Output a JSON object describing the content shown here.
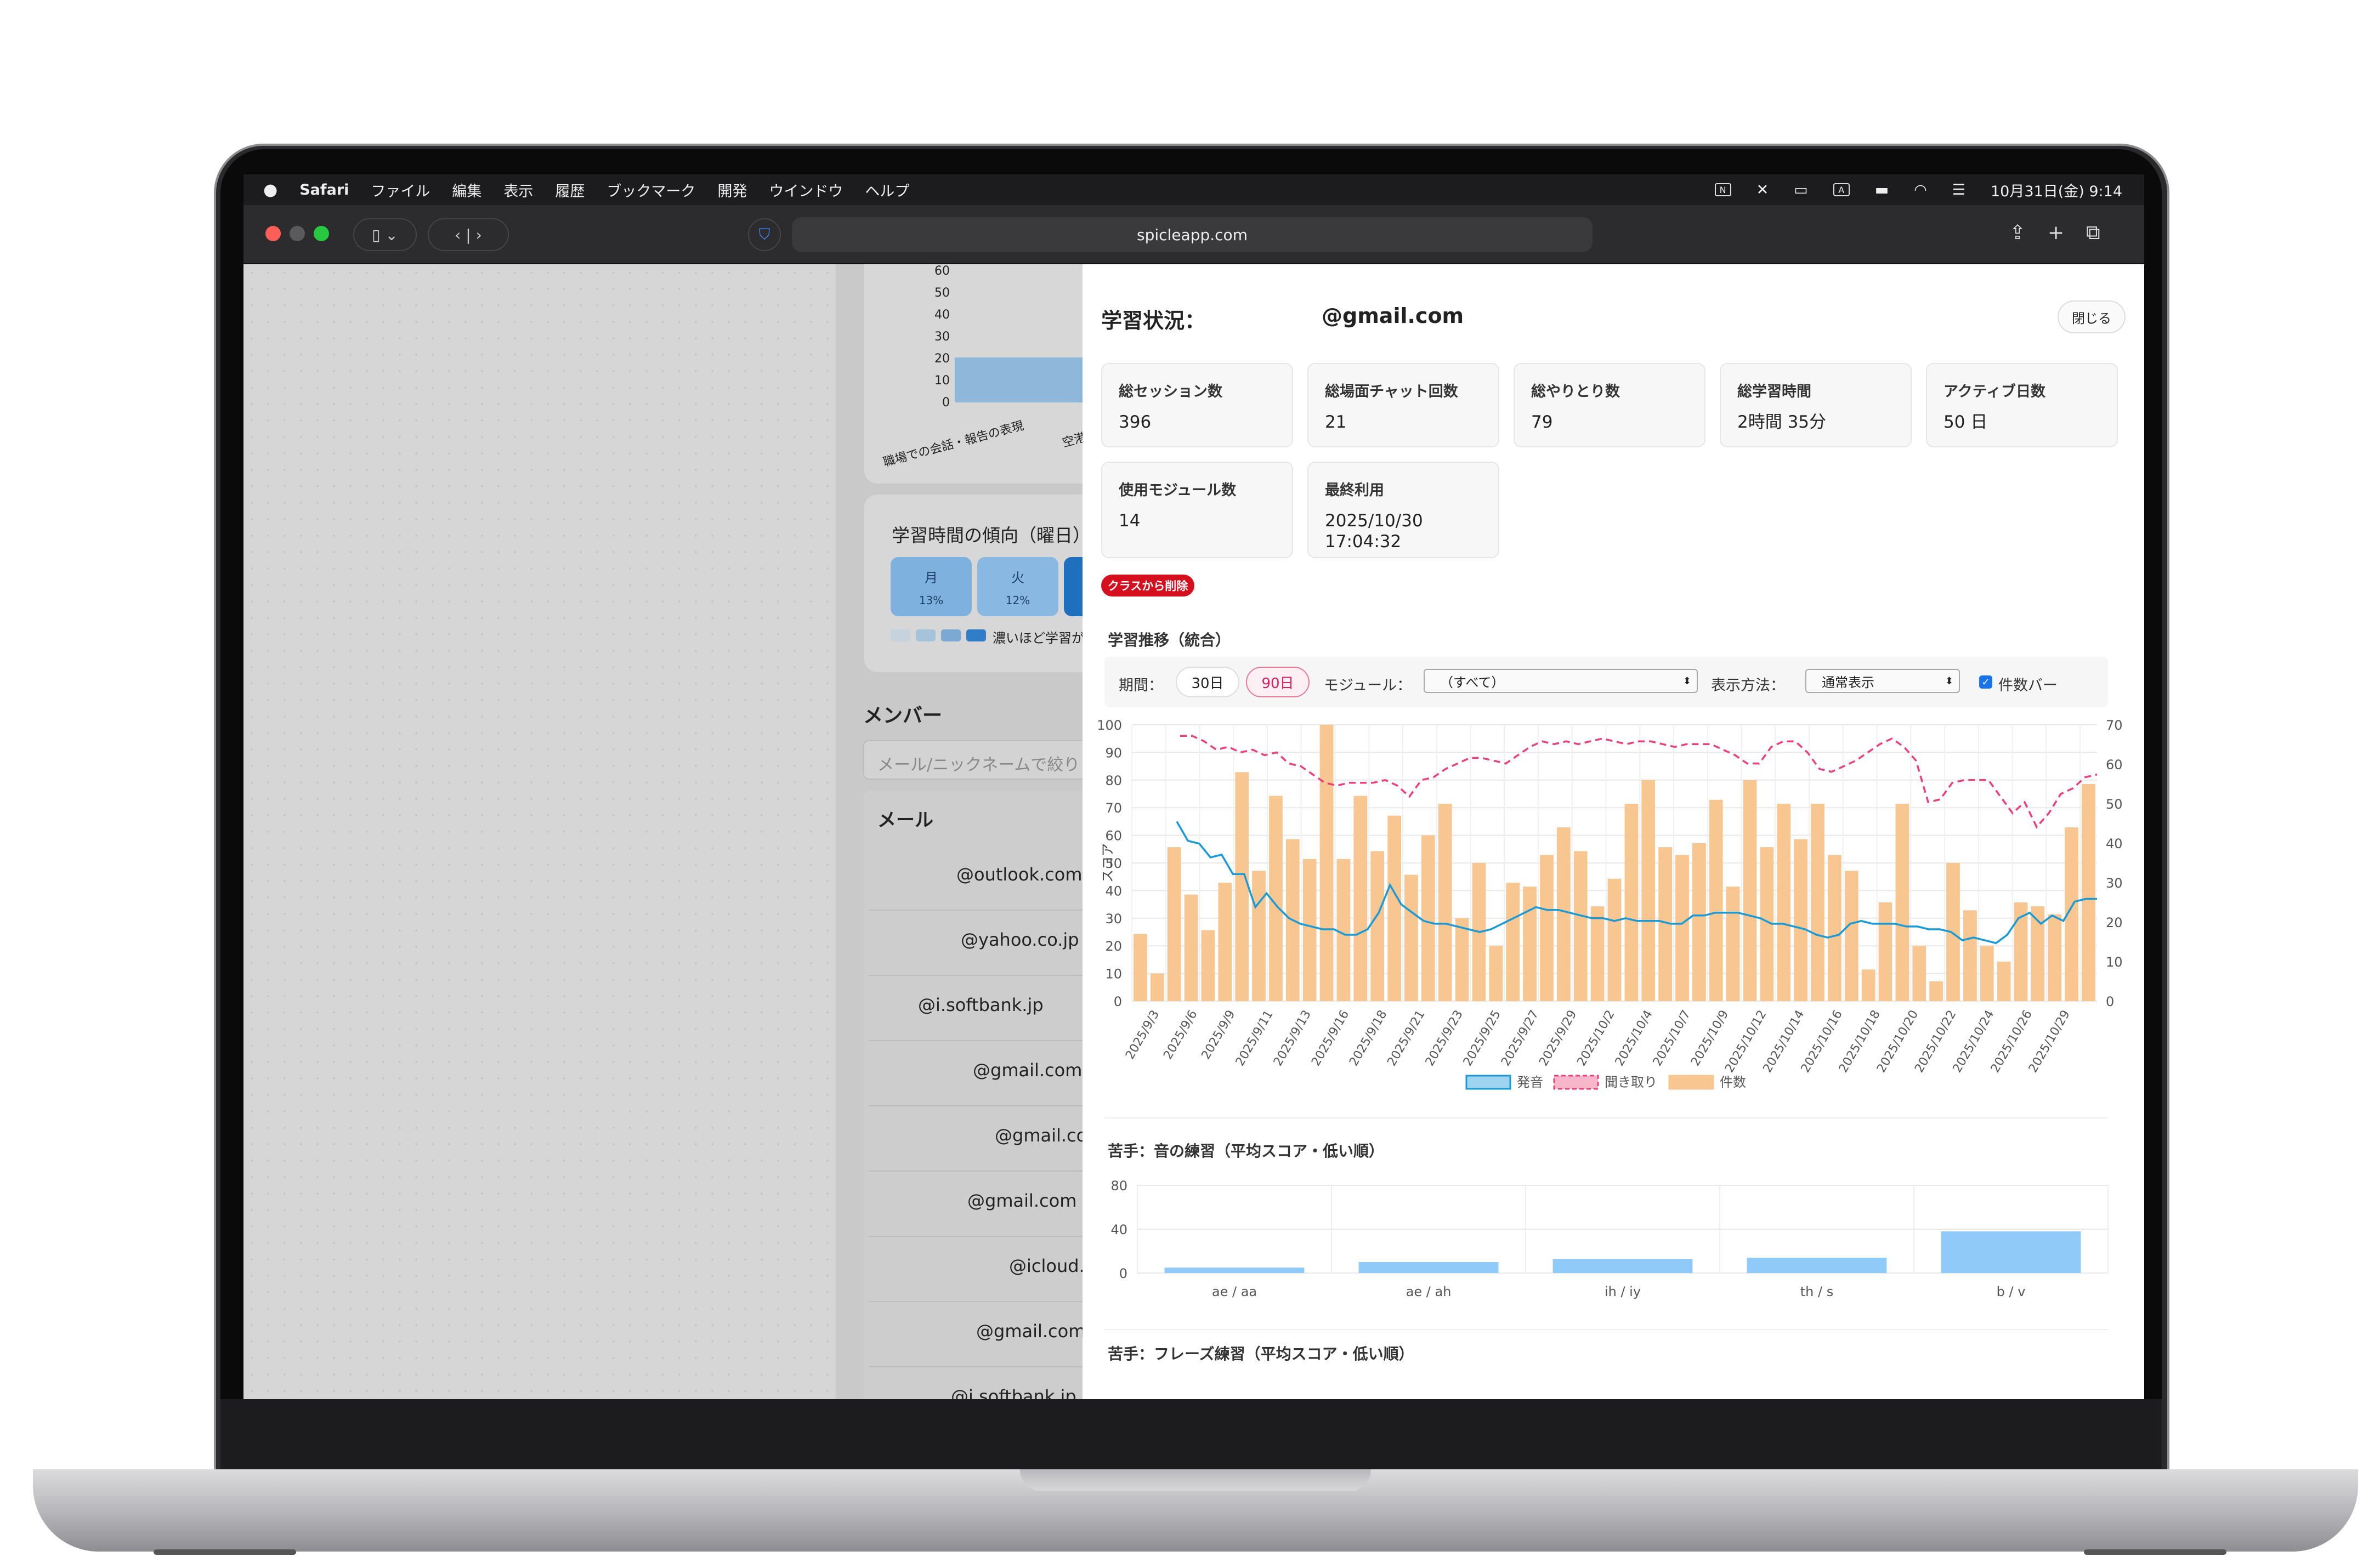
{
  "menubar": {
    "app": "Safari",
    "items": [
      "ファイル",
      "編集",
      "表示",
      "履歴",
      "ブックマーク",
      "開発",
      "ウインドウ",
      "ヘルプ"
    ],
    "clock": "10月31日(金) 9:14"
  },
  "toolbar": {
    "url": "spicleapp.com"
  },
  "midpane": {
    "chart_yticks": [
      "60",
      "50",
      "40",
      "30",
      "20",
      "10",
      "0"
    ],
    "chart_xlabels": [
      "職場での会話・報告の表現",
      "空港で"
    ],
    "weekday_title": "学習時間の傾向（曜日）",
    "days": [
      {
        "label": "月",
        "pct": "13%"
      },
      {
        "label": "火",
        "pct": "12%"
      }
    ],
    "legend_text": "濃いほど学習が",
    "members_title": "メンバー",
    "search_placeholder": "メール/ニックネームで絞り",
    "email_header": "メール",
    "emails": [
      "@outlook.com",
      "@yahoo.co.jp",
      "@i.softbank.jp",
      "@gmail.com",
      "@gmail.com",
      "@gmail.com",
      "@icloud.c",
      "@gmail.com",
      "@i.softbank.jp"
    ]
  },
  "panel": {
    "title": "学習状況：",
    "email": "@gmail.com",
    "close": "閉じる",
    "stats": [
      {
        "label": "総セッション数",
        "value": "396"
      },
      {
        "label": "総場面チャット回数",
        "value": "21"
      },
      {
        "label": "総やりとり数",
        "value": "79"
      },
      {
        "label": "総学習時間",
        "value": "2時間 35分"
      },
      {
        "label": "アクティブ日数",
        "value": "50 日"
      },
      {
        "label": "使用モジュール数",
        "value": "14"
      },
      {
        "label": "最終利用",
        "value": "2025/10/30 17:04:32"
      }
    ],
    "remove": "クラスから削除",
    "trend_title": "学習推移（統合）",
    "filters": {
      "period_label": "期間：",
      "p30": "30日",
      "p90": "90日",
      "module_label": "モジュール：",
      "module_value": "（すべて）",
      "view_label": "表示方法：",
      "view_value": "通常表示",
      "bar_label": "件数バー"
    },
    "weak_sound_title": "苦手：音の練習（平均スコア・低い順）",
    "weak_phrase_title": "苦手：フレーズ練習（平均スコア・低い順）"
  },
  "colors": {
    "pron": "#1a9ad6",
    "listen": "#ec407a",
    "count": "#f8c690",
    "weak_bar": "#90caf9"
  },
  "chart_data": [
    {
      "type": "bar+line",
      "title": "学習推移（統合）",
      "ylabel": "スコア",
      "ylim": [
        0,
        100
      ],
      "y2lim": [
        0,
        70
      ],
      "yticks": [
        0,
        10,
        20,
        30,
        40,
        50,
        60,
        70,
        80,
        90,
        100
      ],
      "y2ticks": [
        0,
        10,
        20,
        30,
        40,
        50,
        60,
        70
      ],
      "x_labels": [
        "2025/9/3",
        "2025/9/6",
        "2025/9/9",
        "2025/9/11",
        "2025/9/13",
        "2025/9/16",
        "2025/9/18",
        "2025/9/21",
        "2025/9/23",
        "2025/9/25",
        "2025/9/27",
        "2025/9/29",
        "2025/10/2",
        "2025/10/4",
        "2025/10/7",
        "2025/10/9",
        "2025/10/12",
        "2025/10/14",
        "2025/10/16",
        "2025/10/18",
        "2025/10/20",
        "2025/10/22",
        "2025/10/24",
        "2025/10/26",
        "2025/10/29"
      ],
      "legend": [
        "発音",
        "聞き取り",
        "件数"
      ],
      "series": [
        {
          "name": "件数",
          "axis": "y2",
          "values": [
            17,
            7,
            39,
            27,
            18,
            30,
            58,
            33,
            52,
            41,
            36,
            70,
            36,
            52,
            38,
            47,
            32,
            42,
            50,
            21,
            35,
            14,
            30,
            29,
            37,
            44,
            38,
            24,
            31,
            50,
            56,
            39,
            37,
            40,
            51,
            29,
            56,
            39,
            50,
            41,
            50,
            37,
            33,
            8,
            25,
            50,
            14,
            5,
            35,
            23,
            14,
            10,
            25,
            24,
            22,
            44,
            55
          ]
        },
        {
          "name": "発音",
          "axis": "y",
          "values": [
            null,
            null,
            null,
            null,
            65,
            58,
            57,
            52,
            53,
            46,
            46,
            34,
            39,
            34,
            30,
            28,
            27,
            26,
            26,
            24,
            24,
            26,
            32,
            42,
            35,
            32,
            29,
            28,
            28,
            27,
            26,
            25,
            26,
            28,
            30,
            32,
            34,
            33,
            33,
            32,
            31,
            30,
            30,
            29,
            30,
            29,
            29,
            29,
            28,
            28,
            31,
            31,
            32,
            32,
            32,
            31,
            30,
            28,
            28,
            27,
            26,
            24,
            23,
            24,
            28,
            29,
            28,
            28,
            28,
            27,
            27,
            26,
            26,
            25,
            22,
            23,
            22,
            21,
            24,
            30,
            32,
            28,
            31,
            29,
            36,
            37,
            37
          ]
        },
        {
          "name": "聞き取り",
          "axis": "y",
          "values": [
            null,
            null,
            null,
            null,
            96,
            96,
            94,
            91,
            92,
            90,
            91,
            89,
            90,
            86,
            85,
            82,
            79,
            78,
            79,
            79,
            79,
            80,
            78,
            74,
            80,
            81,
            84,
            86,
            88,
            88,
            87,
            86,
            89,
            92,
            94,
            93,
            94,
            93,
            94,
            95,
            94,
            93,
            94,
            94,
            93,
            92,
            93,
            93,
            93,
            91,
            89,
            86,
            86,
            92,
            94,
            94,
            90,
            84,
            83,
            85,
            87,
            90,
            93,
            95,
            92,
            87,
            72,
            73,
            79,
            80,
            80,
            80,
            74,
            68,
            72,
            63,
            68,
            75,
            77,
            81,
            82
          ]
        }
      ]
    },
    {
      "type": "bar",
      "title": "苦手：音の練習（平均スコア・低い順）",
      "categories": [
        "ae / aa",
        "ae / ah",
        "ih / iy",
        "th / s",
        "b / v"
      ],
      "values": [
        5,
        10,
        13,
        14,
        38
      ],
      "ylim": [
        0,
        80
      ],
      "yticks": [
        0,
        40,
        80
      ]
    }
  ]
}
